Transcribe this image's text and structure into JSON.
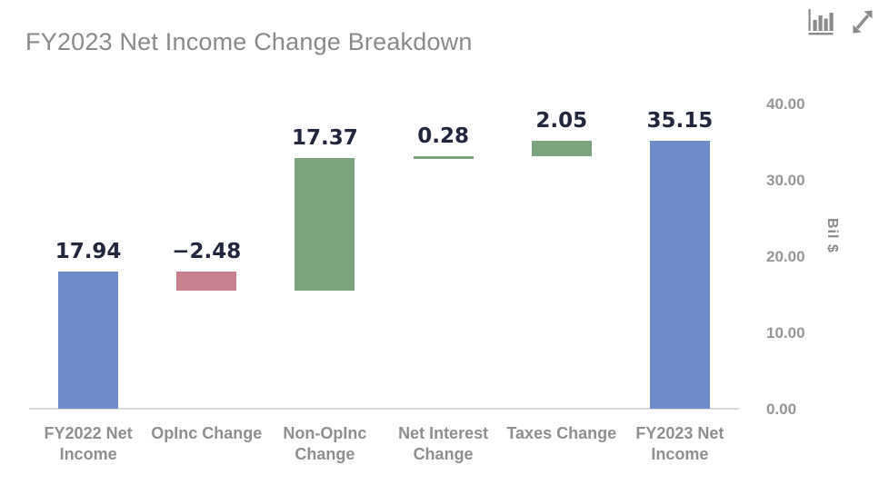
{
  "header": {
    "icons": [
      "bar-chart-icon",
      "expand-icon"
    ]
  },
  "chart_data": {
    "type": "bar",
    "subtype": "waterfall",
    "title": "FY2023 Net Income Change Breakdown",
    "categories": [
      "FY2022 Net\nIncome",
      "OpInc Change",
      "Non-OpInc\nChange",
      "Net Interest\nChange",
      "Taxes Change",
      "FY2023 Net\nIncome"
    ],
    "values": [
      17.94,
      -2.48,
      17.37,
      0.28,
      2.05,
      35.15
    ],
    "value_labels": [
      "17.94",
      "−2.48",
      "17.37",
      "0.28",
      "2.05",
      "35.15"
    ],
    "bar_roles": [
      "total",
      "decrease",
      "increase",
      "increase",
      "increase",
      "total"
    ],
    "ylabel": "Bil $",
    "ylim": [
      0,
      40
    ],
    "yticks": [
      {
        "value": 40,
        "label": "40.00"
      },
      {
        "value": 30,
        "label": "30.00"
      },
      {
        "value": 20,
        "label": "20.00"
      },
      {
        "value": 10,
        "label": "10.00"
      },
      {
        "value": 0,
        "label": "0.00"
      }
    ],
    "y_axis_position": "right",
    "grid": false,
    "legend": false,
    "colors": {
      "total": "#6d8cc9",
      "increase": "#7ba47e",
      "decrease": "#c9818f",
      "value_label": "#23273d",
      "axis_line": "#d9d9d9",
      "tick_label": "#969696",
      "category_label": "#8f8f8f",
      "title": "#8a8a8a",
      "icon": "#8a8a8a"
    }
  }
}
